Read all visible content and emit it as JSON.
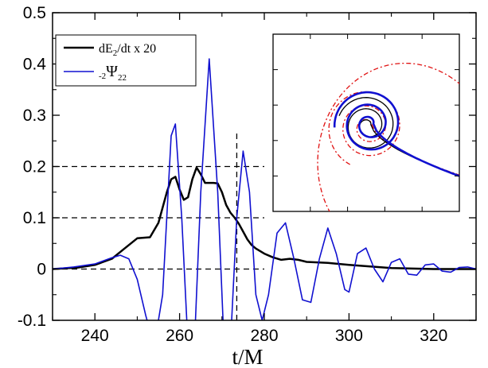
{
  "chart_data": {
    "type": "line",
    "title": "",
    "xlabel": "t/M",
    "ylabel": "",
    "xlim": [
      230,
      330
    ],
    "ylim": [
      -0.1,
      0.5
    ],
    "grid": false,
    "legend_position": "top-left",
    "x_ticks": [
      240,
      260,
      280,
      300,
      320
    ],
    "x_tick_labels": [
      "240",
      "260",
      "280",
      "300",
      "320"
    ],
    "y_ticks": [
      -0.1,
      0,
      0.1,
      0.2,
      0.3,
      0.4,
      0.5
    ],
    "y_tick_labels": [
      "-0.1",
      "0",
      "0.1",
      "0.2",
      "0.3",
      "0.4",
      "0.5"
    ],
    "legend": {
      "energy_label": "dE",
      "energy_sub": "2",
      "energy_suffix": "/dt x 20",
      "psi_prefix_sub": "-2",
      "psi_symbol": "Ψ",
      "psi_sub": "22"
    },
    "series": [
      {
        "id": "energy",
        "color": "#000000",
        "x": [
          230,
          236,
          240,
          244,
          247,
          250,
          253,
          255,
          257,
          258,
          259,
          260,
          261,
          262,
          263,
          264,
          265,
          266,
          267,
          268,
          269,
          270,
          271,
          272,
          273,
          274,
          275,
          276,
          277,
          278,
          280,
          282,
          284,
          286,
          288,
          290,
          295,
          300,
          305,
          310,
          315,
          320,
          330
        ],
        "values": [
          0.0,
          0.003,
          0.008,
          0.02,
          0.04,
          0.06,
          0.062,
          0.09,
          0.15,
          0.175,
          0.18,
          0.155,
          0.135,
          0.14,
          0.175,
          0.198,
          0.185,
          0.168,
          0.168,
          0.168,
          0.167,
          0.15,
          0.125,
          0.11,
          0.1,
          0.088,
          0.073,
          0.058,
          0.047,
          0.04,
          0.03,
          0.023,
          0.018,
          0.02,
          0.018,
          0.014,
          0.012,
          0.008,
          0.005,
          0.002,
          0.001,
          0.0,
          0.0
        ]
      },
      {
        "id": "psi",
        "color": "#1010d0",
        "x": [
          230,
          235,
          240,
          244,
          246,
          248,
          250,
          252,
          254,
          256,
          258,
          259,
          260.5,
          262,
          263.5,
          265,
          267,
          269,
          270.5,
          272,
          273.5,
          275,
          276.5,
          278,
          279.5,
          281,
          283,
          285,
          287,
          289,
          291,
          293,
          295,
          297,
          299,
          300,
          302,
          304,
          306,
          308,
          310,
          312,
          314,
          316,
          318,
          320,
          322,
          324,
          326,
          328,
          330
        ],
        "values": [
          0.0,
          0.004,
          0.01,
          0.022,
          0.027,
          0.02,
          -0.02,
          -0.09,
          -0.15,
          -0.05,
          0.26,
          0.283,
          0.1,
          -0.15,
          -0.15,
          0.15,
          0.41,
          0.15,
          -0.15,
          -0.15,
          0.1,
          0.23,
          0.15,
          -0.05,
          -0.1,
          -0.05,
          0.07,
          0.09,
          0.02,
          -0.06,
          -0.065,
          0.02,
          0.08,
          0.03,
          -0.04,
          -0.045,
          0.03,
          0.041,
          0.0,
          -0.025,
          0.013,
          0.02,
          -0.01,
          -0.012,
          0.008,
          0.01,
          -0.004,
          -0.006,
          0.003,
          0.004,
          0.0
        ]
      }
    ],
    "reference_lines": {
      "horizontal": [
        {
          "y": 0.2,
          "x_from": 230,
          "x_to": 280
        },
        {
          "y": 0.1,
          "x_from": 230,
          "x_to": 280
        },
        {
          "y": 0.0,
          "x_from": 230,
          "x_to": 280
        }
      ],
      "vertical": [
        {
          "x": 273.5,
          "y_from": -0.1,
          "y_to": 0.27
        }
      ]
    },
    "inset": {
      "description": "orbital trajectories",
      "series": [
        {
          "id": "orbit-red",
          "color": "#e01010",
          "dash": "6,3,2,3"
        },
        {
          "id": "orbit-black",
          "color": "#000000",
          "dash": ""
        },
        {
          "id": "orbit-blue",
          "color": "#1010d0",
          "dash": ""
        }
      ]
    }
  }
}
